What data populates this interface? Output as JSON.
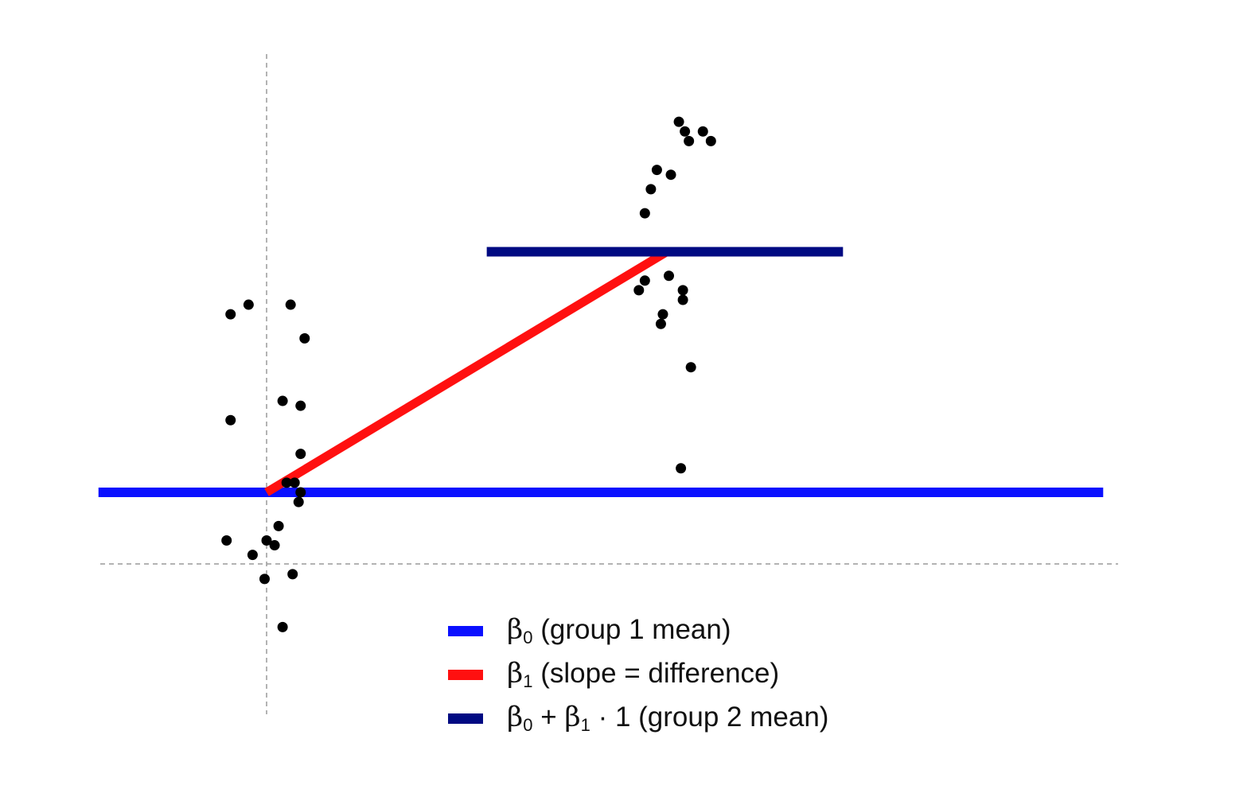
{
  "chart_data": {
    "type": "scatter",
    "x_range": [
      -0.5,
      2.0
    ],
    "y_range": [
      -1.4,
      5.5
    ],
    "reference_lines": {
      "vertical_x": 0,
      "horizontal_y": 0
    },
    "grid": false,
    "legend_placement": "bottom-center",
    "series": [
      {
        "name": "group 1",
        "points": [
          [
            -0.09,
            1.85
          ],
          [
            -0.045,
            1.95
          ],
          [
            0.06,
            1.95
          ],
          [
            0.095,
            1.6
          ],
          [
            -0.09,
            0.75
          ],
          [
            0.04,
            0.95
          ],
          [
            0.085,
            0.9
          ],
          [
            0.085,
            0.4
          ],
          [
            0.05,
            0.1
          ],
          [
            0.07,
            0.1
          ],
          [
            0.085,
            0
          ],
          [
            0.08,
            -0.1
          ],
          [
            0.03,
            -0.35
          ],
          [
            -0.1,
            -0.5
          ],
          [
            0.0,
            -0.5
          ],
          [
            0.02,
            -0.55
          ],
          [
            -0.035,
            -0.65
          ],
          [
            0.065,
            -0.85
          ],
          [
            -0.005,
            -0.9
          ],
          [
            0.04,
            -1.4
          ]
        ]
      },
      {
        "name": "group 2",
        "points": [
          [
            1.03,
            3.85
          ],
          [
            1.045,
            3.75
          ],
          [
            1.055,
            3.65
          ],
          [
            1.09,
            3.75
          ],
          [
            1.11,
            3.65
          ],
          [
            0.975,
            3.35
          ],
          [
            1.01,
            3.3
          ],
          [
            0.96,
            3.15
          ],
          [
            0.945,
            2.9
          ],
          [
            0.93,
            2.1
          ],
          [
            0.945,
            2.2
          ],
          [
            1.005,
            2.25
          ],
          [
            1.04,
            2.1
          ],
          [
            1.04,
            2.0
          ],
          [
            0.99,
            1.85
          ],
          [
            0.985,
            1.75
          ],
          [
            1.06,
            1.3
          ],
          [
            1.035,
            0.25
          ]
        ]
      }
    ],
    "lines": [
      {
        "name": "beta0",
        "color": "#0a10ff",
        "from": [
          -0.42,
          0.0
        ],
        "to": [
          2.09,
          0.0
        ]
      },
      {
        "name": "beta1",
        "color": "#ff1010",
        "from": [
          0.0,
          0.0
        ],
        "to": [
          1.0,
          2.5
        ]
      },
      {
        "name": "beta0_beta1",
        "color": "#000a82",
        "from": [
          0.55,
          2.5
        ],
        "to": [
          1.44,
          2.5
        ]
      }
    ],
    "legend": [
      {
        "symbol": "β",
        "sub": "0",
        "text": " (group 1 mean)",
        "color": "#0a10ff"
      },
      {
        "symbol": "β",
        "sub": "1",
        "text": " (slope = difference)",
        "color": "#ff1010"
      },
      {
        "symbol": "β",
        "sub": "0",
        "plus": " + ",
        "symbol2": "β",
        "sub2": "1",
        "text": " · 1 (group 2 mean)",
        "color": "#000a82"
      }
    ]
  }
}
